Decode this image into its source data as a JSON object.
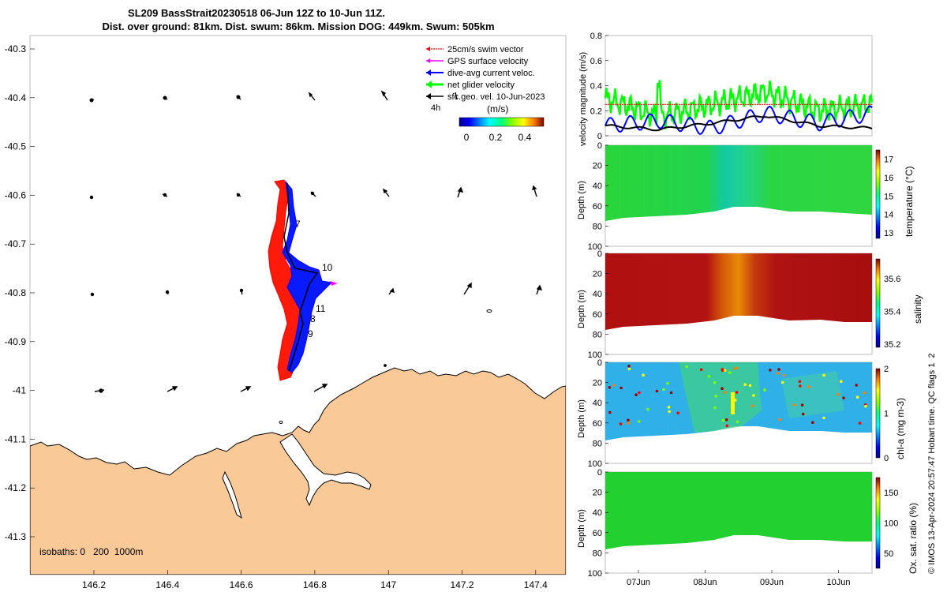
{
  "header": {
    "title_line1": "SL209 BassStrait20230518 06-Jun 12Z to 10-Jun 11Z.",
    "title_line2": "Dist. over ground: 81km. Dist. swum: 86km. Mission DOG: 449km. Swum: 505km"
  },
  "map": {
    "lat_ticks": [
      "-40.3",
      "-40.4",
      "-40.5",
      "-40.6",
      "-40.7",
      "-40.8",
      "-40.9",
      "-41",
      "-41.1",
      "-41.2",
      "-41.3"
    ],
    "lon_ticks": [
      "146.2",
      "146.4",
      "146.6",
      "146.8",
      "147",
      "147.2",
      "147.4"
    ],
    "legend": [
      {
        "label": "25cm/s swim vector",
        "color": "#ff0000"
      },
      {
        "label": "GPS surface velocity",
        "color": "#ff00ff"
      },
      {
        "label": "dive-avg current veloc.",
        "color": "#0000ff"
      },
      {
        "label": "net glider velocity",
        "color": "#00ff00"
      },
      {
        "label": "sfc.geo. vel. 10-Jun-2023",
        "color": "#000000"
      }
    ],
    "interval_label": "4h",
    "colorbar_title": "(m/s)",
    "colorbar_ticks": [
      "0",
      "0.2",
      "0.4"
    ],
    "isobaths_label": "isobaths: 0   200  1000m",
    "track_labels": [
      "7",
      "10",
      "11",
      "8",
      "9"
    ],
    "land_color": "#f9c997",
    "track_color": "#0000ff",
    "swim_color": "#ff0000"
  },
  "panels": {
    "velocity": {
      "ylabel": "velocity magnitude (m/s)",
      "yticks": [
        "0",
        "0.2",
        "0.4",
        "0.6",
        "0.8"
      ]
    },
    "temperature": {
      "ylabel": "Depth (m)",
      "cbar_label": "temperature (°C)",
      "cbar_ticks": [
        "13",
        "14",
        "15",
        "16",
        "17"
      ]
    },
    "salinity": {
      "ylabel": "Depth (m)",
      "cbar_label": "salinity",
      "cbar_ticks": [
        "35.2",
        "35.4",
        "35.6"
      ]
    },
    "chla": {
      "ylabel": "Depth (m)",
      "cbar_label": "chl-a (mg m-3)",
      "cbar_ticks": [
        "0",
        "1",
        "2"
      ]
    },
    "oxygen": {
      "ylabel": "Depth (m)",
      "cbar_label": "Ox. sat. ratio (%)",
      "cbar_ticks": [
        "50",
        "100",
        "150"
      ]
    },
    "depth_ticks": [
      "0",
      "20",
      "40",
      "60",
      "80",
      "100"
    ],
    "time_ticks": [
      "07Jun",
      "08Jun",
      "09Jun",
      "10Jun"
    ]
  },
  "footer_note": "© IMOS 13-Apr-2024 20:57:47 Hobart time. QC flags 1  2",
  "chart_data": {
    "type": "line",
    "title": "velocity magnitude (m/s)",
    "x": [
      "06Jun12Z",
      "07Jun",
      "08Jun",
      "09Jun",
      "10Jun",
      "10Jun11Z"
    ],
    "ylim": [
      0,
      0.8
    ],
    "series": [
      {
        "name": "net glider velocity",
        "values": [
          0.3,
          0.15,
          0.25,
          0.35,
          0.2,
          0.25
        ]
      },
      {
        "name": "dive-avg current veloc.",
        "values": [
          0.08,
          0.12,
          0.06,
          0.18,
          0.1,
          0.18
        ]
      },
      {
        "name": "sfc.geo. vel.",
        "values": [
          0.08,
          0.05,
          0.1,
          0.16,
          0.08,
          0.06
        ]
      },
      {
        "name": "25cm/s swim vector",
        "values": [
          0.25,
          0.25,
          0.25,
          0.25,
          0.25,
          0.25
        ]
      }
    ]
  }
}
